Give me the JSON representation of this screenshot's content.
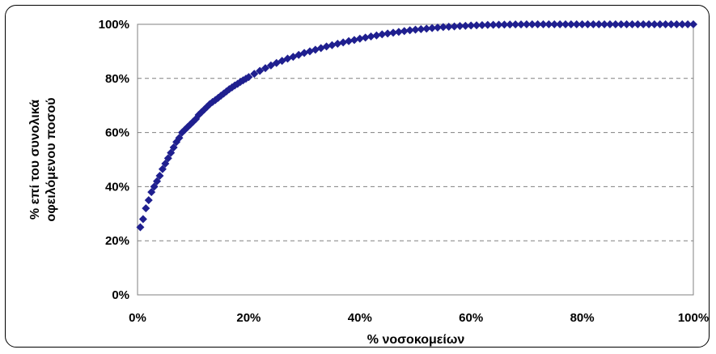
{
  "chart_data": {
    "type": "scatter",
    "title": "",
    "xlabel": "% νοσοκομείων",
    "ylabel_lines": [
      "% επί του συνολικά",
      "οφειλόμενου ποσού"
    ],
    "x_ticks": [
      "0%",
      "20%",
      "40%",
      "60%",
      "80%",
      "100%"
    ],
    "y_ticks": [
      "0%",
      "20%",
      "40%",
      "60%",
      "80%",
      "100%"
    ],
    "xlim": [
      0,
      100
    ],
    "ylim": [
      0,
      100
    ],
    "grid": "horizontal-dashed",
    "legend": "none",
    "marker": "diamond",
    "marker_color": "#1f1f8f",
    "series": [
      {
        "values": [
          [
            0.5,
            25
          ],
          [
            1.0,
            28
          ],
          [
            1.5,
            32
          ],
          [
            2.0,
            35
          ],
          [
            2.5,
            38
          ],
          [
            3.0,
            40
          ],
          [
            3.5,
            42
          ],
          [
            4.0,
            44
          ],
          [
            4.5,
            46.5
          ],
          [
            5.0,
            48.5
          ],
          [
            5.5,
            50.5
          ],
          [
            6.0,
            52.5
          ],
          [
            6.5,
            54.5
          ],
          [
            7.0,
            56.5
          ],
          [
            7.5,
            58
          ],
          [
            8.0,
            60
          ],
          [
            8.5,
            61
          ],
          [
            9.0,
            62
          ],
          [
            9.5,
            63
          ],
          [
            10.0,
            64
          ],
          [
            10.5,
            65
          ],
          [
            11.0,
            66.5
          ],
          [
            11.5,
            67.5
          ],
          [
            12.0,
            68.5
          ],
          [
            12.5,
            69.5
          ],
          [
            13.0,
            70.5
          ],
          [
            13.5,
            71.3
          ],
          [
            14.0,
            72
          ],
          [
            14.5,
            72.8
          ],
          [
            15.0,
            73.6
          ],
          [
            15.5,
            74.4
          ],
          [
            16.0,
            75.2
          ],
          [
            16.5,
            76
          ],
          [
            17.0,
            76.7
          ],
          [
            17.5,
            77.4
          ],
          [
            18.0,
            78
          ],
          [
            18.5,
            78.7
          ],
          [
            19.0,
            79.3
          ],
          [
            19.5,
            79.9
          ],
          [
            20.0,
            80.5
          ],
          [
            21.0,
            81.7
          ],
          [
            22.0,
            82.8
          ],
          [
            23.0,
            83.8
          ],
          [
            24.0,
            84.8
          ],
          [
            25.0,
            85.7
          ],
          [
            26.0,
            86.5
          ],
          [
            27.0,
            87.3
          ],
          [
            28.0,
            88
          ],
          [
            29.0,
            88.7
          ],
          [
            30.0,
            89.4
          ],
          [
            31.0,
            90
          ],
          [
            32.0,
            90.6
          ],
          [
            33.0,
            91.2
          ],
          [
            34.0,
            91.8
          ],
          [
            35.0,
            92.3
          ],
          [
            36.0,
            92.8
          ],
          [
            37.0,
            93.3
          ],
          [
            38.0,
            93.8
          ],
          [
            39.0,
            94.2
          ],
          [
            40.0,
            94.7
          ],
          [
            41.0,
            95.1
          ],
          [
            42.0,
            95.5
          ],
          [
            43.0,
            95.9
          ],
          [
            44.0,
            96.3
          ],
          [
            45.0,
            96.6
          ],
          [
            46.0,
            96.9
          ],
          [
            47.0,
            97.2
          ],
          [
            48.0,
            97.5
          ],
          [
            49.0,
            97.8
          ],
          [
            50.0,
            98
          ],
          [
            51.0,
            98.2
          ],
          [
            52.0,
            98.4
          ],
          [
            53.0,
            98.6
          ],
          [
            54.0,
            98.8
          ],
          [
            55.0,
            99
          ],
          [
            56.0,
            99.1
          ],
          [
            57.0,
            99.2
          ],
          [
            58.0,
            99.35
          ],
          [
            59.0,
            99.45
          ],
          [
            60.0,
            99.55
          ],
          [
            61.0,
            99.62
          ],
          [
            62.0,
            99.7
          ],
          [
            63.0,
            99.76
          ],
          [
            64.0,
            99.82
          ],
          [
            65.0,
            99.86
          ],
          [
            66.0,
            99.9
          ],
          [
            67.0,
            99.93
          ],
          [
            68.0,
            99.96
          ],
          [
            69.0,
            99.98
          ],
          [
            70.0,
            100
          ],
          [
            71.0,
            100
          ],
          [
            72.0,
            100
          ],
          [
            73.0,
            100
          ],
          [
            74.0,
            100
          ],
          [
            75.0,
            100
          ],
          [
            76.0,
            100
          ],
          [
            77.0,
            100
          ],
          [
            78.0,
            100
          ],
          [
            79.0,
            100
          ],
          [
            80.0,
            100
          ],
          [
            81.0,
            100
          ],
          [
            82.0,
            100
          ],
          [
            83.0,
            100
          ],
          [
            84.0,
            100
          ],
          [
            85.0,
            100
          ],
          [
            86.0,
            100
          ],
          [
            87.0,
            100
          ],
          [
            88.0,
            100
          ],
          [
            89.0,
            100
          ],
          [
            90.0,
            100
          ],
          [
            91.0,
            100
          ],
          [
            92.0,
            100
          ],
          [
            93.0,
            100
          ],
          [
            94.0,
            100
          ],
          [
            95.0,
            100
          ],
          [
            96.0,
            100
          ],
          [
            97.0,
            100
          ],
          [
            98.0,
            100
          ],
          [
            99.0,
            100
          ],
          [
            100.0,
            100
          ]
        ]
      }
    ]
  }
}
